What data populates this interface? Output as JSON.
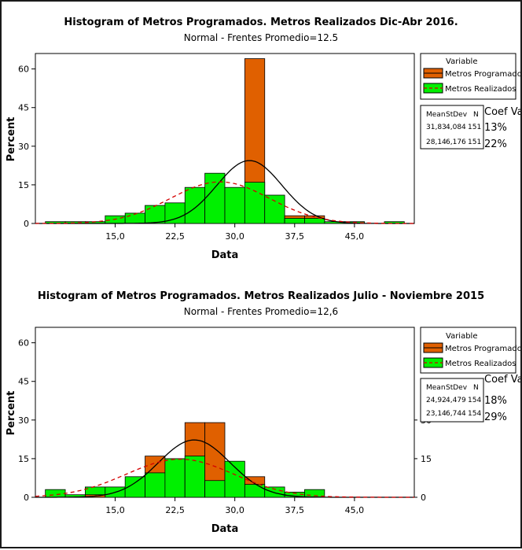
{
  "colors": {
    "programados": "#e06000",
    "realizados": "#00f000",
    "programados_curve": "#000000",
    "realizados_curve": "#d40000"
  },
  "chart_data": [
    {
      "type": "bar",
      "title": "Histogram of Metros Programados. Metros Realizados Dic-Abr 2016.",
      "subtitle": "Normal -  Frentes Promedio=12.5",
      "xlabel": "Data",
      "ylabel": "Percent",
      "xlim": [
        5.0,
        52.5
      ],
      "ylim": [
        0,
        66
      ],
      "x_ticks": [
        "15,0",
        "22,5",
        "30,0",
        "37,5",
        "45,0"
      ],
      "y_ticks": [
        "0",
        "15",
        "30",
        "45",
        "60"
      ],
      "bin_width": 2.5,
      "bin_left_edges": [
        6.25,
        8.75,
        11.25,
        13.75,
        16.25,
        18.75,
        21.25,
        23.75,
        26.25,
        28.75,
        31.25,
        33.75,
        36.25,
        38.75,
        41.25,
        43.75,
        46.25,
        48.75
      ],
      "series": [
        {
          "name": "Metros Programados",
          "values": [
            0,
            0,
            0,
            0,
            0,
            0,
            0,
            0,
            0,
            0,
            64,
            0,
            3,
            3,
            0,
            0,
            0,
            0
          ]
        },
        {
          "name": "Metros Realizados",
          "values": [
            0.7,
            0.7,
            0.7,
            3,
            4,
            7,
            8,
            14,
            19.5,
            14,
            16,
            11,
            2,
            2,
            0.7,
            0.7,
            0,
            0.7
          ]
        }
      ],
      "legend": {
        "title": "Variable",
        "entries": [
          "Metros Programados",
          "Metros Realizados"
        ]
      },
      "stats": {
        "headers": [
          "Mean",
          "StDev",
          "N"
        ],
        "rows": [
          [
            "31,83",
            "4,084",
            "151"
          ],
          [
            "28,14",
            "6,176",
            "151"
          ]
        ],
        "cv_header": "Coef Var",
        "cv_values": [
          "13%",
          "22%"
        ]
      }
    },
    {
      "type": "bar",
      "title": "Histogram of Metros Programados. Metros Realizados Julio - Noviembre 2015",
      "subtitle": "Normal -  Frentes Promedio=12,6",
      "xlabel": "Data",
      "ylabel": "Percent",
      "xlim": [
        5.0,
        52.5
      ],
      "ylim": [
        0,
        66
      ],
      "x_ticks": [
        "15,0",
        "22,5",
        "30,0",
        "37,5",
        "45,0"
      ],
      "y_ticks": [
        "0",
        "15",
        "30",
        "45",
        "60"
      ],
      "bin_width": 2.5,
      "bin_left_edges": [
        6.25,
        8.75,
        11.25,
        13.75,
        16.25,
        18.75,
        21.25,
        23.75,
        26.25,
        28.75,
        31.25,
        33.75,
        36.25,
        38.75,
        41.25
      ],
      "series": [
        {
          "name": "Metros Programados",
          "values": [
            0,
            0,
            1,
            0,
            0,
            16,
            0,
            29,
            29,
            0,
            8,
            0,
            0,
            0,
            0
          ]
        },
        {
          "name": "Metros Realizados",
          "values": [
            3,
            1,
            4,
            4,
            8,
            9.5,
            15,
            16,
            6.5,
            14,
            5,
            4,
            2,
            3,
            0
          ]
        }
      ],
      "legend": {
        "title": "Variable",
        "entries": [
          "Metros Programados",
          "Metros Realizados"
        ]
      },
      "stats": {
        "headers": [
          "Mean",
          "StDev",
          "N"
        ],
        "rows": [
          [
            "24,92",
            "4,479",
            "154"
          ],
          [
            "23,14",
            "6,744",
            "154"
          ]
        ],
        "cv_header": "Coef Var",
        "cv_values": [
          "18%",
          "29%"
        ]
      },
      "right_axis_ticks": [
        "0",
        "15",
        "30"
      ]
    }
  ]
}
